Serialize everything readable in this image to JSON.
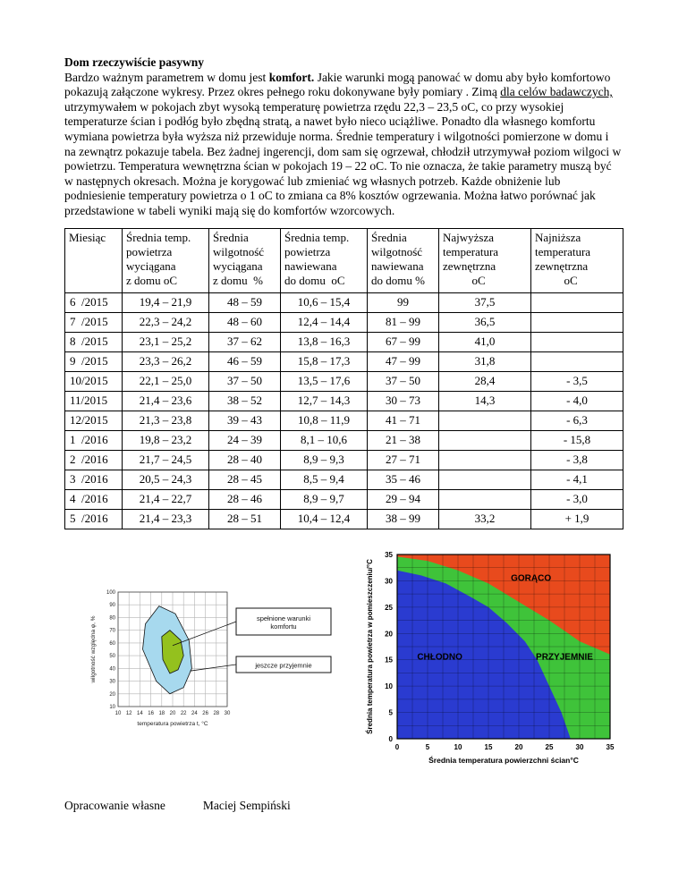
{
  "doc": {
    "title": "Dom rzeczywiście pasywny",
    "intro": [
      {
        "text": "Bardzo ważnym parametrem w domu jest ",
        "style": "normal"
      },
      {
        "text": "komfort.",
        "style": "bold"
      },
      {
        "text": " Jakie warunki mogą panować w domu aby było komfortowo pokazują załączone wykresy. Przez okres pełnego roku dokonywane były pomiary . Zimą ",
        "style": "normal"
      },
      {
        "text": "dla celów badawczych,",
        "style": "underline"
      },
      {
        "text": " utrzymywałem w pokojach zbyt wysoką temperaturę powietrza rzędu 22,3 – 23,5 oC, co przy wysokiej temperaturze ścian i podłóg było zbędną stratą, a nawet było nieco uciążliwe. Ponadto dla własnego komfortu wymiana powietrza była wyższa niż przewiduje norma. Średnie temperatury i wilgotności pomierzone w domu i na zewnątrz pokazuje tabela. Bez żadnej ingerencji, dom sam się ogrzewał, chłodził utrzymywał poziom wilgoci w powietrzu. Temperatura wewnętrzna ścian w pokojach 19 – 22 oC. To nie oznacza, że takie parametry muszą być w następnych okresach. Można je korygować lub zmieniać wg własnych potrzeb. Każde obniżenie lub podniesienie temperatury powietrza o 1 oC to zmiana ca 8% kosztów ogrzewania. Można łatwo porównać jak przedstawione w tabeli wyniki mają się do komfortów wzorcowych.",
        "style": "normal"
      }
    ],
    "footer": {
      "left": "Opracowanie własne",
      "right": "Maciej Sempiński"
    }
  },
  "table": {
    "headers": [
      "Miesiąc",
      "Średnia temp.\npowietrza\nwyciągana\nz domu oC",
      "Średnia\nwilgotność\nwyciągana\nz domu  %",
      "Średnia temp.\npowietrza\nnawiewana\ndo domu  oC",
      "Średnia\nwilgotność\nnawiewana\ndo domu %",
      "Najwyższa\ntemperatura\nzewnętrzna\n          oC",
      "Najniższa\ntemperatura\nzewnętrzna\n          oC"
    ],
    "rows": [
      [
        "6  /2015",
        "19,4 – 21,9",
        "48 – 59",
        "10,6 – 15,4",
        "99",
        "37,5",
        ""
      ],
      [
        "7  /2015",
        "22,3 – 24,2",
        "48 – 60",
        "12,4 – 14,4",
        "81 – 99",
        "36,5",
        ""
      ],
      [
        "8  /2015",
        "23,1 – 25,2",
        "37 – 62",
        "13,8 – 16,3",
        "67 – 99",
        "41,0",
        ""
      ],
      [
        "9  /2015",
        "23,3 – 26,2",
        "46 – 59",
        "15,8 – 17,3",
        "47 – 99",
        "31,8",
        ""
      ],
      [
        "10/2015",
        "22,1 – 25,0",
        "37 – 50",
        "13,5 – 17,6",
        "37 – 50",
        "28,4",
        "- 3,5"
      ],
      [
        "11/2015",
        "21,4 – 23,6",
        "38 – 52",
        "12,7 – 14,3",
        "30 – 73",
        "14,3",
        "- 4,0"
      ],
      [
        "12/2015",
        "21,3 – 23,8",
        "39 – 43",
        "10,8 – 11,9",
        "41 – 71",
        "",
        "- 6,3"
      ],
      [
        "1  /2016",
        "19,8 – 23,2",
        "24 – 39",
        "8,1 – 10,6",
        "21 – 38",
        "",
        "- 15,8"
      ],
      [
        "2  /2016",
        "21,7 – 24,5",
        "28 – 40",
        "8,9 – 9,3",
        "27 – 71",
        "",
        "- 3,8"
      ],
      [
        "3  /2016",
        "20,5 – 24,3",
        "28 – 45",
        "8,5 – 9,4",
        "35 – 46",
        "",
        "- 4,1"
      ],
      [
        "4  /2016",
        "21,4 – 22,7",
        "28 – 46",
        "8,9 – 9,7",
        "29 – 94",
        "",
        "- 3,0"
      ],
      [
        "5  /2016",
        "21,4 – 23,3",
        "28 – 51",
        "10,4 – 12,4",
        "38 – 99",
        "33,2",
        "+ 1,9"
      ]
    ]
  },
  "chart_data": [
    {
      "type": "area",
      "name": "wykres-warunkow-komfortu",
      "xlabel": "temperatura powietrza t, °C",
      "ylabel": "wilgotność względna φ, %",
      "x_range": [
        10,
        30
      ],
      "y_range": [
        10,
        100
      ],
      "x_ticks": [
        10,
        12,
        14,
        16,
        18,
        20,
        22,
        24,
        26,
        28,
        30
      ],
      "y_ticks": [
        10,
        20,
        30,
        40,
        50,
        60,
        70,
        80,
        90,
        100
      ],
      "grid": true,
      "series": [
        {
          "name": "jeszcze przyjemnie",
          "color": "#a7d9ee",
          "points": [
            [
              15,
              75
            ],
            [
              17.5,
              89
            ],
            [
              20.5,
              83
            ],
            [
              23,
              62
            ],
            [
              23.5,
              40
            ],
            [
              22,
              25
            ],
            [
              19.5,
              20
            ],
            [
              17,
              30
            ],
            [
              14.5,
              55
            ]
          ]
        },
        {
          "name": "spełnione warunki komfortu",
          "color": "#94c11e",
          "points": [
            [
              18,
              65
            ],
            [
              19.5,
              70
            ],
            [
              21.5,
              62
            ],
            [
              22,
              50
            ],
            [
              21,
              39
            ],
            [
              19.5,
              36
            ],
            [
              18.2,
              47
            ]
          ]
        }
      ],
      "legend": [
        {
          "lines": [
            "spełnione warunki",
            "komfortu"
          ],
          "target": "spełnione warunki komfortu"
        },
        {
          "lines": [
            "jeszcze przyjemnie"
          ],
          "target": "jeszcze przyjemnie"
        }
      ]
    },
    {
      "type": "area",
      "name": "strefy-komfortu",
      "xlabel": "Średnia temperatura powierzchni ścian°C",
      "ylabel": "Średnia temperatura powietrza w pomieszczeniu/°C",
      "x_range": [
        0,
        35
      ],
      "y_range": [
        0,
        35
      ],
      "x_ticks": [
        0,
        5,
        10,
        15,
        20,
        25,
        30,
        35
      ],
      "y_ticks": [
        0,
        5,
        10,
        15,
        20,
        25,
        30,
        35
      ],
      "grid_step": 2.5,
      "zones": [
        {
          "label": "PRZYJEMNIE",
          "color": "#3fc33a",
          "label_pos": [
            27.5,
            15
          ],
          "background": true
        },
        {
          "label": "CHŁODNO",
          "color": "#2a3bd0",
          "label_pos": [
            7,
            15
          ],
          "points": [
            [
              0,
              32
            ],
            [
              4,
              31
            ],
            [
              8,
              29.5
            ],
            [
              12,
              27
            ],
            [
              15,
              25
            ],
            [
              18,
              22
            ],
            [
              21,
              18.5
            ],
            [
              23,
              15
            ],
            [
              25,
              10
            ],
            [
              27,
              5
            ],
            [
              28.5,
              0
            ],
            [
              0,
              0
            ]
          ]
        },
        {
          "label": "GORĄCO",
          "color": "#e84a1d",
          "label_pos": [
            22,
            30
          ],
          "points": [
            [
              0,
              35
            ],
            [
              35,
              35
            ],
            [
              35,
              16
            ],
            [
              30,
              18.5
            ],
            [
              25,
              22.5
            ],
            [
              20,
              26
            ],
            [
              15,
              29.5
            ],
            [
              10,
              32
            ],
            [
              5,
              33.8
            ],
            [
              0,
              34.6
            ]
          ]
        }
      ]
    }
  ]
}
